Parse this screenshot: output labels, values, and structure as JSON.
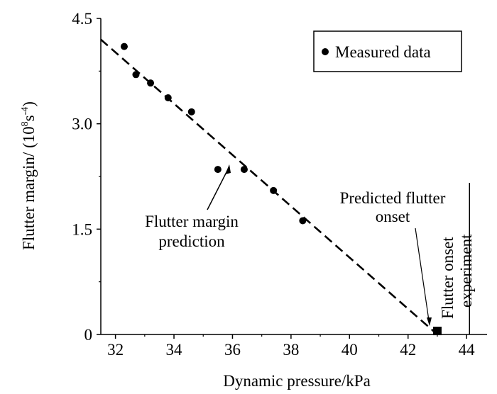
{
  "chart_data": {
    "type": "scatter",
    "title": "",
    "xlabel": "Dynamic pressure/kPa",
    "ylabel": {
      "prefix": "Flutter margin/ (10",
      "sup1": "8",
      "mid": "s",
      "sup2": "-4",
      "suffix": ")"
    },
    "xlim": [
      31.5,
      44.7
    ],
    "ylim": [
      0,
      4.5
    ],
    "xticks": [
      32,
      34,
      36,
      38,
      40,
      42,
      44
    ],
    "yticks": [
      0,
      1.5,
      3.0,
      4.5
    ],
    "ytick_labels": [
      "0",
      "1.5",
      "3.0",
      "4.5"
    ],
    "grid": false,
    "legend": {
      "position": "top-right",
      "entries": [
        "Measured data"
      ]
    },
    "series": [
      {
        "name": "Measured data",
        "marker": "circle",
        "points": [
          {
            "x": 32.3,
            "y": 4.1
          },
          {
            "x": 32.7,
            "y": 3.7
          },
          {
            "x": 33.2,
            "y": 3.58
          },
          {
            "x": 33.8,
            "y": 3.37
          },
          {
            "x": 34.6,
            "y": 3.17
          },
          {
            "x": 35.5,
            "y": 2.35
          },
          {
            "x": 36.4,
            "y": 2.35
          },
          {
            "x": 37.4,
            "y": 2.05
          },
          {
            "x": 38.4,
            "y": 1.62
          }
        ]
      }
    ],
    "prediction_line": {
      "style": "dashed",
      "from": {
        "x": 31.5,
        "y": 4.2
      },
      "to": {
        "x": 43.0,
        "y": 0.0
      }
    },
    "predicted_onset": {
      "x": 43.0,
      "y": 0.05,
      "marker": "square"
    },
    "experiment_line": {
      "x": 44.1
    },
    "annotations": {
      "prediction": [
        "Flutter margin",
        "prediction"
      ],
      "predicted_onset": [
        "Predicted flutter",
        "onset"
      ],
      "experiment": [
        "Flutter onset",
        "experiment"
      ]
    },
    "colors": {
      "ink": "#000000",
      "background": "#ffffff"
    }
  }
}
